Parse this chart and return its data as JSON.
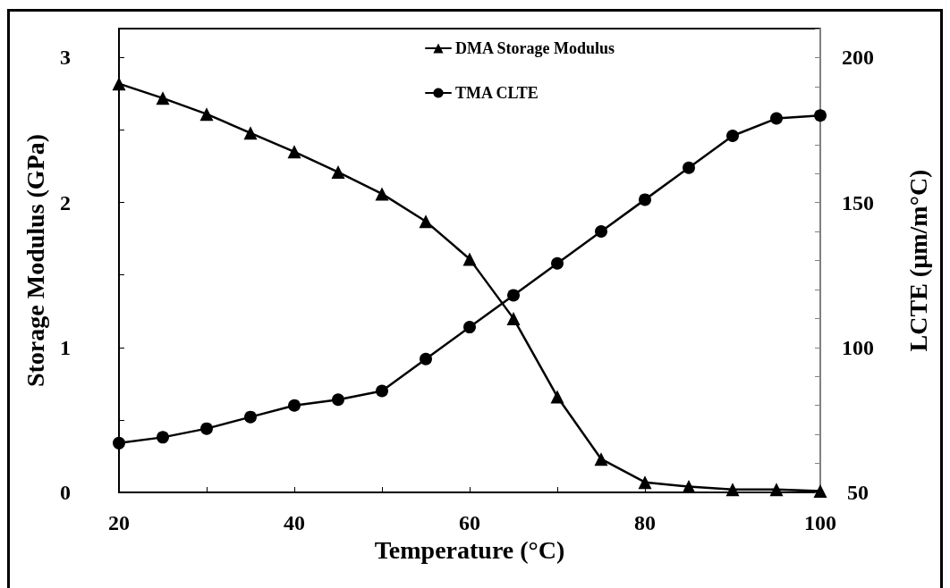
{
  "chart_data": {
    "type": "line",
    "xlabel": "Temperature (°C)",
    "ylabel": "Storage Modulus (GPa)",
    "y2label": "LCTE (µm/m°C)",
    "x": [
      20,
      25,
      30,
      35,
      40,
      45,
      50,
      55,
      60,
      65,
      70,
      75,
      80,
      85,
      90,
      95,
      100
    ],
    "series": [
      {
        "name": "DMA Storage Modulus",
        "color": "#000000",
        "marker": "triangle",
        "values": [
          2.82,
          2.72,
          2.61,
          2.48,
          2.35,
          2.21,
          2.06,
          1.87,
          1.61,
          1.2,
          0.66,
          0.23,
          0.07,
          0.04,
          0.02,
          0.02,
          0.01
        ]
      },
      {
        "name": "TMA CLTE",
        "color": "#000000",
        "marker": "circle",
        "axis": "y2",
        "values": [
          67,
          69,
          72,
          76,
          80,
          82,
          85,
          96,
          107,
          118,
          129,
          140,
          151,
          162,
          173,
          179,
          180
        ]
      }
    ],
    "xlim": [
      20,
      100
    ],
    "xticks": [
      20,
      {
        "value": 30,
        "label": null
      },
      40,
      {
        "value": 50,
        "label": null
      },
      60,
      {
        "value": 70,
        "label": null
      },
      80,
      {
        "value": 90,
        "label": null
      },
      100
    ],
    "ylim": [
      0,
      3.2
    ],
    "yticks": [
      0,
      {
        "value": 0.5,
        "label": null
      },
      1,
      {
        "value": 1.5,
        "label": null
      },
      2,
      {
        "value": 2.5,
        "label": null
      },
      3
    ],
    "y2lim": [
      50,
      210
    ],
    "y2ticks": [
      50,
      {
        "value": 60,
        "label": null
      },
      {
        "value": 70,
        "label": null
      },
      {
        "value": 80,
        "label": null
      },
      {
        "value": 90,
        "label": null
      },
      100,
      {
        "value": 110,
        "label": null
      },
      {
        "value": 120,
        "label": null
      },
      {
        "value": 130,
        "label": null
      },
      {
        "value": 140,
        "label": null
      },
      150,
      {
        "value": 160,
        "label": null
      },
      {
        "value": 170,
        "label": null
      },
      {
        "value": 180,
        "label": null
      },
      {
        "value": 190,
        "label": null
      },
      200
    ],
    "legend": "top right",
    "grid": false,
    "line_style": "solid"
  }
}
